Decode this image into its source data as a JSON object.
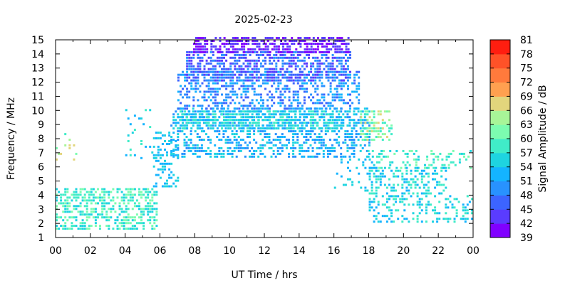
{
  "chart_data": {
    "type": "heatmap",
    "title": "2025-02-23",
    "xlabel": "UT Time / hrs",
    "ylabel": "Frequency / MHz",
    "colorbar_label": "Signal Amplitude / dB",
    "x_ticks": [
      "00",
      "02",
      "04",
      "06",
      "08",
      "10",
      "12",
      "14",
      "16",
      "18",
      "20",
      "22",
      "00"
    ],
    "xlim": [
      0,
      24
    ],
    "y_ticks": [
      "1",
      "2",
      "3",
      "4",
      "5",
      "6",
      "7",
      "8",
      "9",
      "10",
      "11",
      "12",
      "13",
      "14",
      "15"
    ],
    "ylim": [
      1,
      15
    ],
    "colorbar_ticks": [
      "39",
      "42",
      "45",
      "48",
      "51",
      "54",
      "57",
      "60",
      "63",
      "66",
      "69",
      "72",
      "75",
      "78",
      "81"
    ],
    "colorbar_range": [
      39,
      81
    ],
    "colorbar_colors": [
      "#8000ff",
      "#5a3cff",
      "#3c64ff",
      "#2892ff",
      "#14b4ff",
      "#1ed4e0",
      "#40ecc8",
      "#7cfcb0",
      "#a8f598",
      "#e2d57c",
      "#ffa050",
      "#ff7a3c",
      "#ff5228",
      "#ff1e10"
    ],
    "grid": false,
    "legend": "colorbar-right",
    "regions": [
      {
        "t": [
          0.0,
          5.8
        ],
        "f": [
          1.5,
          4.4
        ],
        "db": [
          54,
          63
        ],
        "density": 0.55
      },
      {
        "t": [
          4.0,
          5.9
        ],
        "f": [
          6.5,
          10.0
        ],
        "db": [
          51,
          60
        ],
        "density": 0.12
      },
      {
        "t": [
          0.0,
          1.2
        ],
        "f": [
          6.4,
          8.4
        ],
        "db": [
          57,
          69
        ],
        "density": 0.1
      },
      {
        "t": [
          5.6,
          7.0
        ],
        "f": [
          4.5,
          8.5
        ],
        "db": [
          51,
          57
        ],
        "density": 0.35
      },
      {
        "t": [
          6.6,
          18.0
        ],
        "f": [
          6.6,
          10.0
        ],
        "db": [
          48,
          57
        ],
        "density": 0.45
      },
      {
        "t": [
          7.0,
          16.5
        ],
        "f": [
          8.6,
          9.8
        ],
        "db": [
          51,
          60
        ],
        "density": 0.6
      },
      {
        "t": [
          7.0,
          17.5
        ],
        "f": [
          10.0,
          12.6
        ],
        "db": [
          45,
          54
        ],
        "density": 0.4
      },
      {
        "t": [
          7.5,
          17.0
        ],
        "f": [
          12.0,
          14.0
        ],
        "db": [
          42,
          51
        ],
        "density": 0.6
      },
      {
        "t": [
          7.9,
          16.8
        ],
        "f": [
          14.0,
          15.0
        ],
        "db": [
          39,
          45
        ],
        "density": 0.65
      },
      {
        "t": [
          17.5,
          19.3
        ],
        "f": [
          7.8,
          9.8
        ],
        "db": [
          57,
          69
        ],
        "density": 0.45
      },
      {
        "t": [
          17.8,
          23.9
        ],
        "f": [
          5.8,
          7.2
        ],
        "db": [
          54,
          63
        ],
        "density": 0.25
      },
      {
        "t": [
          18.0,
          22.5
        ],
        "f": [
          4.0,
          6.0
        ],
        "db": [
          51,
          60
        ],
        "density": 0.4
      },
      {
        "t": [
          18.0,
          23.9
        ],
        "f": [
          2.0,
          4.0
        ],
        "db": [
          51,
          60
        ],
        "density": 0.3
      },
      {
        "t": [
          16.0,
          18.5
        ],
        "f": [
          4.2,
          6.5
        ],
        "db": [
          51,
          57
        ],
        "density": 0.15
      }
    ]
  }
}
